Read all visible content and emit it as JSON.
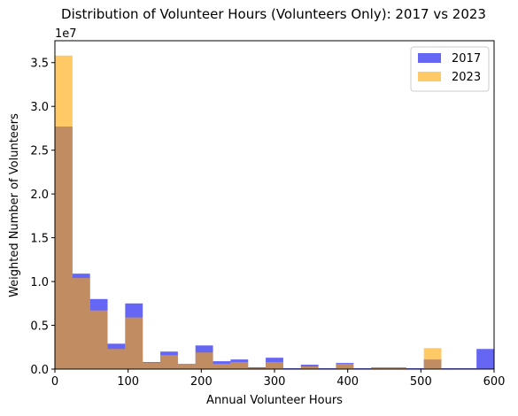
{
  "chart_data": {
    "type": "bar",
    "title": "Distribution of Volunteer Hours (Volunteers Only): 2017 vs 2023",
    "xlabel": "Annual Volunteer Hours",
    "ylabel": "Weighted Number of Volunteers",
    "y_offset_label": "1e7",
    "y_scale": 10000000,
    "xlim": [
      0,
      600
    ],
    "ylim": [
      0,
      37500000
    ],
    "x_ticks": [
      0,
      100,
      200,
      300,
      400,
      500,
      600
    ],
    "x_tick_labels": [
      "0",
      "100",
      "200",
      "300",
      "400",
      "500",
      "600"
    ],
    "y_ticks": [
      0,
      5000000,
      10000000,
      15000000,
      20000000,
      25000000,
      30000000,
      35000000
    ],
    "y_tick_labels": [
      "0.0",
      "0.5",
      "1.0",
      "1.5",
      "2.0",
      "2.5",
      "3.0",
      "3.5"
    ],
    "grid": false,
    "legend_position": "top-right",
    "bin_edges": [
      0,
      24,
      48,
      72,
      96,
      120,
      144,
      168,
      192,
      216,
      240,
      264,
      288,
      312,
      336,
      360,
      384,
      408,
      432,
      456,
      480,
      504,
      528,
      552,
      576,
      600
    ],
    "series": [
      {
        "name": "2017",
        "color": "#0000ee",
        "opacity": 0.6,
        "values": [
          27700000,
          10900000,
          8000000,
          2900000,
          7500000,
          800000,
          2000000,
          600000,
          2700000,
          900000,
          1100000,
          200000,
          1300000,
          100000,
          500000,
          100000,
          700000,
          100000,
          200000,
          200000,
          100000,
          1100000,
          100000,
          100000,
          2300000
        ]
      },
      {
        "name": "2023",
        "color": "#ffa500",
        "opacity": 0.6,
        "values": [
          35800000,
          10400000,
          6700000,
          2300000,
          5900000,
          700000,
          1600000,
          600000,
          1900000,
          600000,
          800000,
          100000,
          800000,
          0,
          300000,
          0,
          600000,
          0,
          200000,
          200000,
          0,
          2400000,
          0,
          0,
          0
        ]
      }
    ]
  }
}
